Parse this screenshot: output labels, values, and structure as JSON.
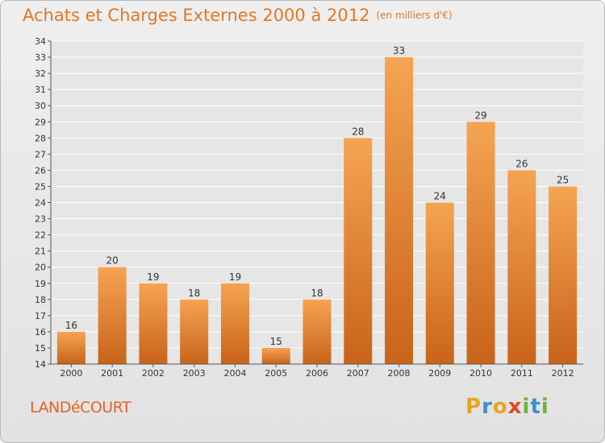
{
  "title": {
    "main": "Achats et Charges Externes 2000 à 2012",
    "unit": "(en milliers d'€)"
  },
  "town_label": "LANDéCOURT",
  "logo": {
    "letters": [
      "P",
      "r",
      "o",
      "x",
      "i",
      "t",
      "i"
    ],
    "colors": [
      "#e8a51c",
      "#3c8fd3",
      "#e8a51c",
      "#e4452c",
      "#6db33f",
      "#3c8fd3",
      "#6db33f"
    ]
  },
  "chart_data": {
    "type": "bar",
    "categories": [
      "2000",
      "2001",
      "2002",
      "2003",
      "2004",
      "2005",
      "2006",
      "2007",
      "2008",
      "2009",
      "2010",
      "2011",
      "2012"
    ],
    "values": [
      16,
      20,
      19,
      18,
      19,
      15,
      18,
      28,
      33,
      24,
      29,
      26,
      25
    ],
    "ylim": [
      14,
      34
    ],
    "yticks": [
      14,
      15,
      16,
      17,
      18,
      19,
      20,
      21,
      22,
      23,
      24,
      25,
      26,
      27,
      28,
      29,
      30,
      31,
      32,
      33,
      34
    ],
    "bar_color_top": "#f5a452",
    "bar_color_bottom": "#c9631a",
    "grid": true,
    "title": "Achats et Charges Externes 2000 à 2012"
  }
}
